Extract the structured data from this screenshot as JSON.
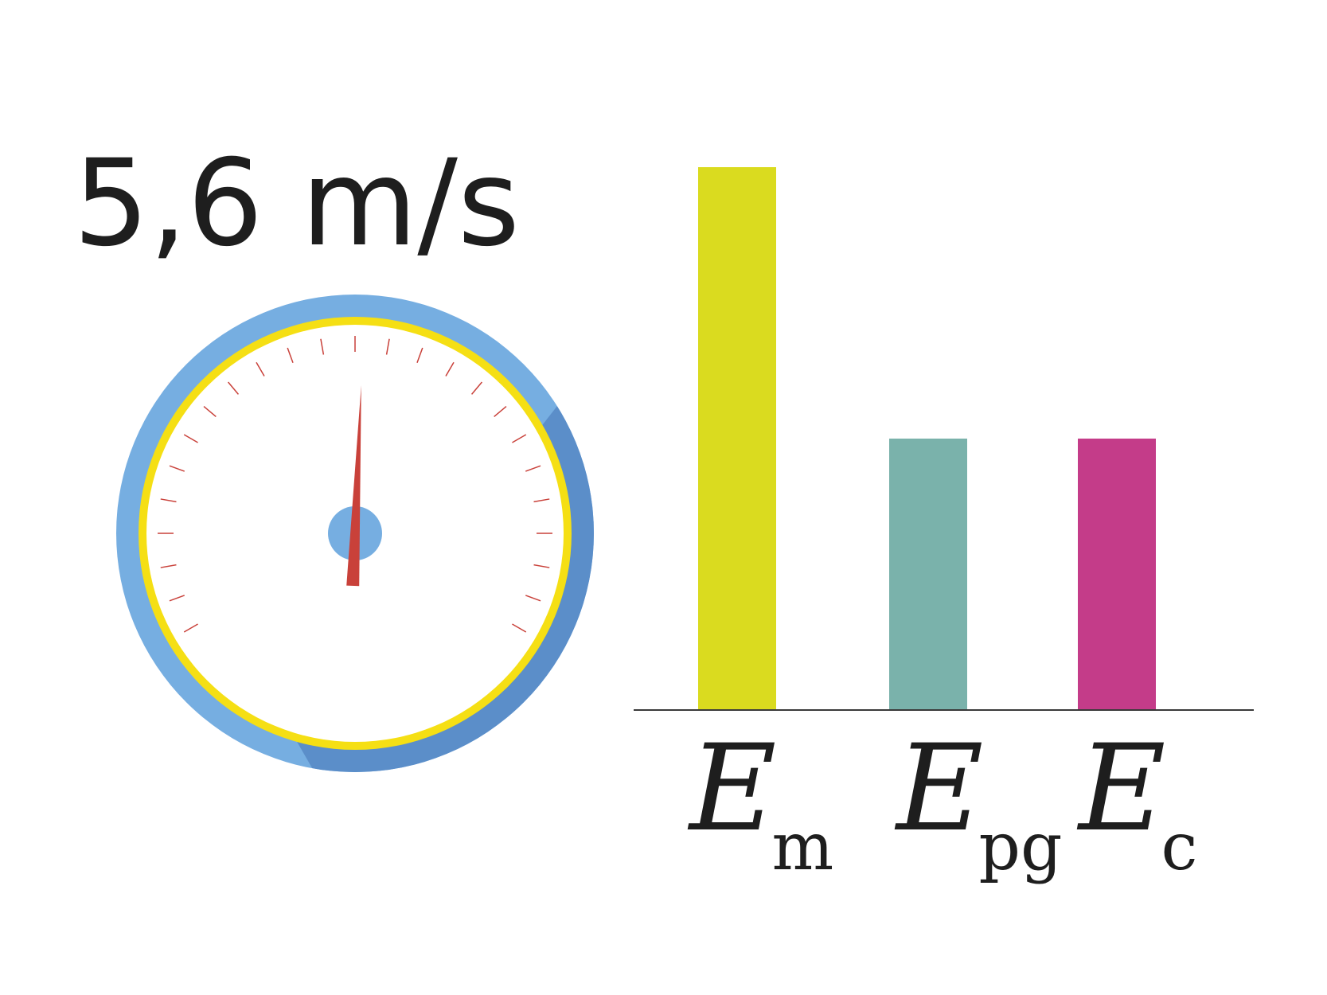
{
  "speed": {
    "label": "5,6 m/s",
    "gauge_reading_fraction": 0.51
  },
  "colors": {
    "gauge_outer": "#76aee1",
    "gauge_shadow": "#5b8ec9",
    "gauge_ring": "#f5df14",
    "gauge_face": "#ffffff",
    "tick": "#c9413a",
    "needle": "#c9413a",
    "hub": "#76aee1",
    "axis": "#3a3a3a"
  },
  "chart_data": {
    "type": "bar",
    "categories": [
      {
        "main": "E",
        "sub": "m"
      },
      {
        "main": "E",
        "sub": "pg"
      },
      {
        "main": "E",
        "sub": "c"
      }
    ],
    "values": [
      2,
      1,
      1
    ],
    "ylim": [
      0,
      2
    ],
    "bar_colors": [
      "#dadb1f",
      "#7ab2ab",
      "#c43c89"
    ],
    "title": "",
    "xlabel": "",
    "ylabel": "",
    "grid": false
  }
}
